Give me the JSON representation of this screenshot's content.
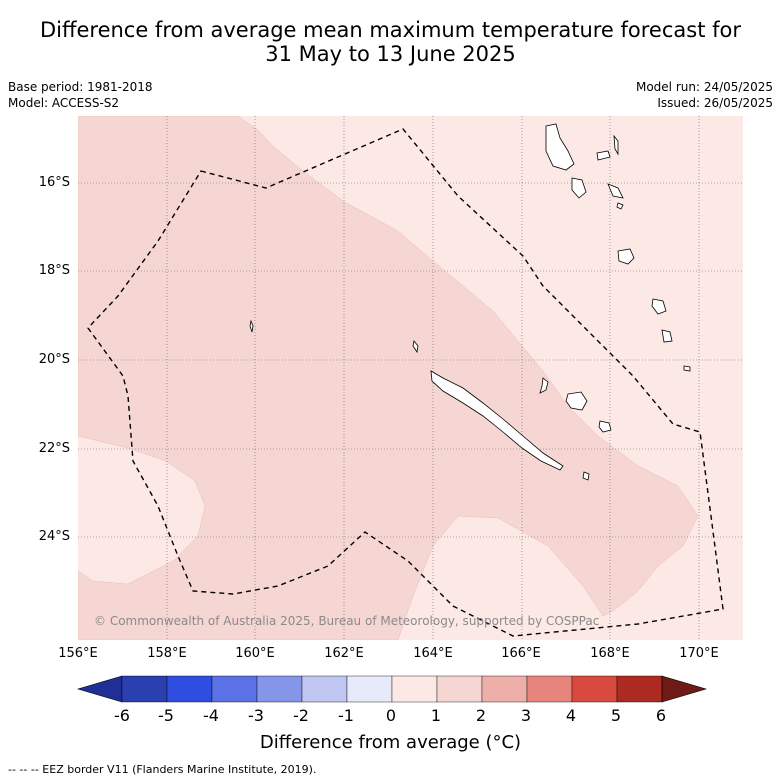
{
  "title_line1": "Difference from average mean maximum temperature forecast for",
  "title_line2": "31 May to 13 June 2025",
  "base_period": "Base period: 1981-2018",
  "model": "Model: ACCESS-S2",
  "model_run": "Model run: 24/05/2025",
  "issued": "Issued: 26/05/2025",
  "copyright": "© Commonwealth of Australia 2025, Bureau of Meteorology, supported by COSPPac",
  "lat_labels": [
    "16°S",
    "18°S",
    "20°S",
    "22°S",
    "24°S"
  ],
  "lon_labels": [
    "156°E",
    "158°E",
    "160°E",
    "162°E",
    "164°E",
    "166°E",
    "168°E",
    "170°E"
  ],
  "colorbar": {
    "ticks": [
      "-6",
      "-5",
      "-4",
      "-3",
      "-2",
      "-1",
      "0",
      "1",
      "2",
      "3",
      "4",
      "5",
      "6"
    ],
    "colors": [
      "#1f2f96",
      "#2a3fb0",
      "#2f4de0",
      "#5a72e6",
      "#8596ea",
      "#bfc6f2",
      "#e6eaf9",
      "#fce9e6",
      "#f5d6d3",
      "#efafa9",
      "#e6857d",
      "#d94a3e",
      "#ad2a22",
      "#6e1a17"
    ],
    "label": "Difference from average (°C)"
  },
  "legend": "-- -- -- EEZ border V11 (Flanders Marine Institute, 2019)."
}
